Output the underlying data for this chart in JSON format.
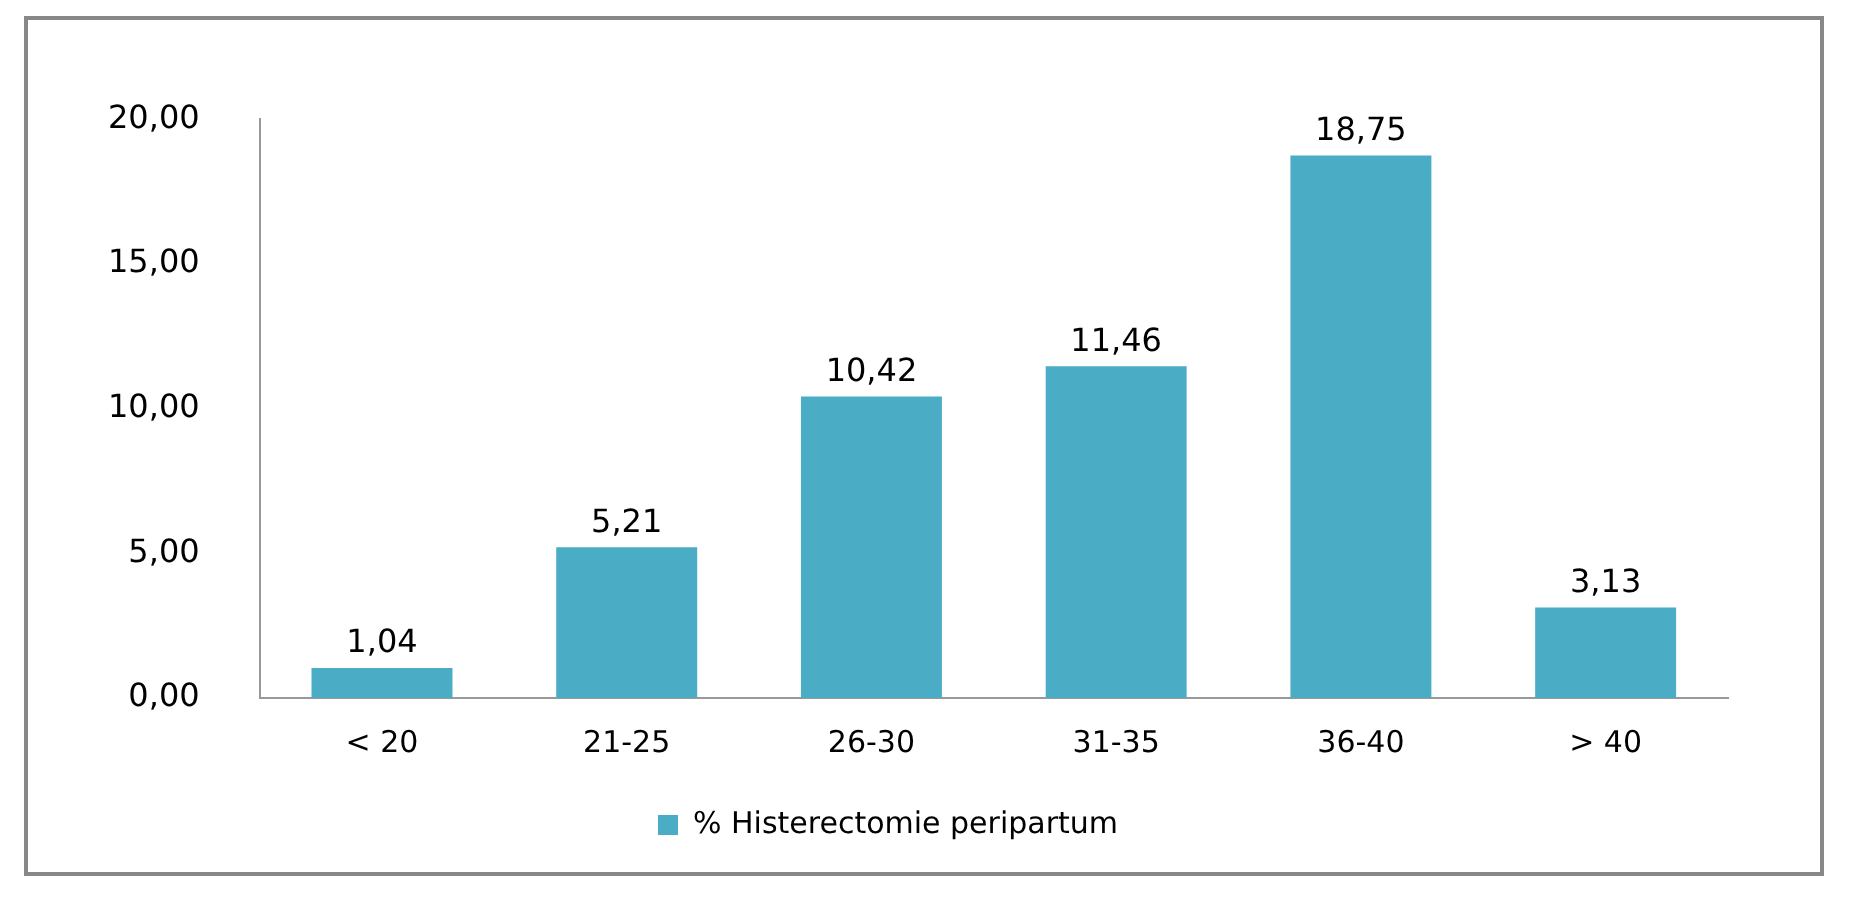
{
  "chart_data": {
    "type": "bar",
    "categories": [
      "< 20",
      "21-25",
      "26-30",
      "31-35",
      "36-40",
      "> 40"
    ],
    "series": [
      {
        "name": "% Histerectomie peripartum",
        "color": "#4bacc6",
        "values": [
          1.04,
          5.21,
          10.42,
          11.46,
          18.75,
          3.13
        ],
        "value_labels": [
          "1,04",
          "5,21",
          "10,42",
          "11,46",
          "18,75",
          "3,13"
        ]
      }
    ],
    "ylim": [
      0,
      20
    ],
    "yticks": [
      {
        "value": 0,
        "label": "0,00"
      },
      {
        "value": 5,
        "label": "5,00"
      },
      {
        "value": 10,
        "label": "10,00"
      },
      {
        "value": 15,
        "label": "15,00"
      },
      {
        "value": 20,
        "label": "20,00"
      }
    ],
    "grid": false,
    "legend": "bottom"
  }
}
